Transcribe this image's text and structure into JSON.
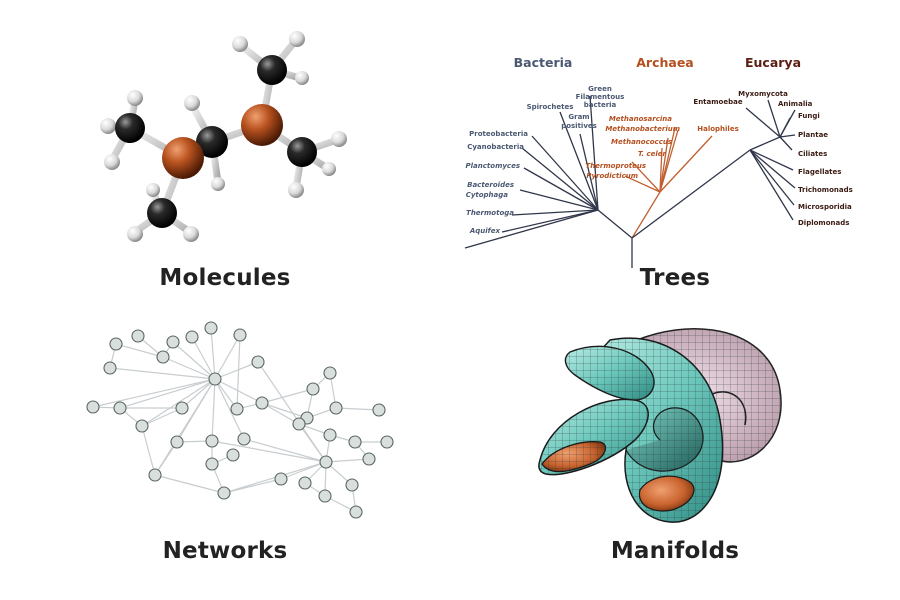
{
  "colors": {
    "background": "#ffffff",
    "caption": "#222222",
    "bacteria": "#4a5872",
    "archaea": "#b4501f",
    "eucarya": "#5a1f12",
    "tree_branch": "#30374a",
    "archaea_branch": "#c06030",
    "node_fill": "#d9dfdd",
    "node_stroke": "#596661",
    "edge": "#c8cdd0",
    "atom_orange": "#b8521f",
    "atom_black": "#1e1e1e",
    "atom_white": "#e8e8e8",
    "manifold_teal": "#7ccfc4",
    "manifold_orange": "#c8632e"
  },
  "panels": {
    "molecules": {
      "caption": "Molecules",
      "icon": "molecule-ball-and-stick"
    },
    "trees": {
      "caption": "Trees",
      "domains": {
        "bacteria": "Bacteria",
        "archaea": "Archaea",
        "eucarya": "Eucarya"
      },
      "bacteria_taxa": [
        "Green",
        "Filamentous",
        "bacteria",
        "Spirochetes",
        "Gram",
        "positives",
        "Proteobacteria",
        "Cyanobacteria",
        "Planctomyces",
        "Bacteroides",
        "Cytophaga",
        "Thermotoga",
        "Aquifex"
      ],
      "archaea_taxa": [
        "Methanosarcina",
        "Methanobacterium",
        "Methanococcus",
        "T. celer",
        "Thermoproteus",
        "Pyrodicticum",
        "Halophiles"
      ],
      "eucarya_taxa": [
        "Entamoebae",
        "Myxomycota",
        "Animalia",
        "Fungi",
        "Plantae",
        "Ciliates",
        "Flagellates",
        "Trichomonads",
        "Microsporidia",
        "Diplomonads"
      ]
    },
    "networks": {
      "caption": "Networks",
      "icon": "graph-network"
    },
    "manifolds": {
      "caption": "Manifolds",
      "icon": "klein-bottle-surface"
    }
  }
}
